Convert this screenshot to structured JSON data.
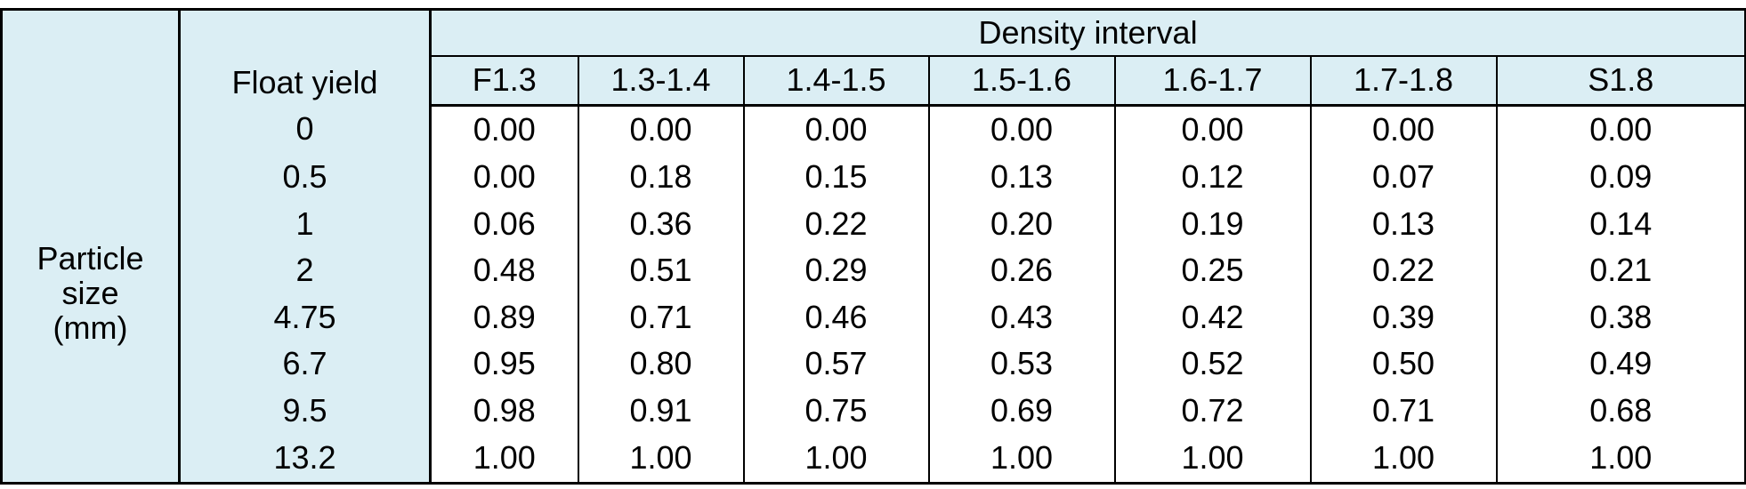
{
  "table": {
    "float_yield_header": "Float yield",
    "group_header": "Density interval",
    "columns": [
      "F1.3",
      "1.3-1.4",
      "1.4-1.5",
      "1.5-1.6",
      "1.6-1.7",
      "1.7-1.8",
      "S1.8"
    ],
    "row_header": "Particle size (mm)",
    "rows": [
      {
        "size": "0",
        "values": [
          "0.00",
          "0.00",
          "0.00",
          "0.00",
          "0.00",
          "0.00",
          "0.00"
        ]
      },
      {
        "size": "0.5",
        "values": [
          "0.00",
          "0.18",
          "0.15",
          "0.13",
          "0.12",
          "0.07",
          "0.09"
        ]
      },
      {
        "size": "1",
        "values": [
          "0.06",
          "0.36",
          "0.22",
          "0.20",
          "0.19",
          "0.13",
          "0.14"
        ]
      },
      {
        "size": "2",
        "values": [
          "0.48",
          "0.51",
          "0.29",
          "0.26",
          "0.25",
          "0.22",
          "0.21"
        ]
      },
      {
        "size": "4.75",
        "values": [
          "0.89",
          "0.71",
          "0.46",
          "0.43",
          "0.42",
          "0.39",
          "0.38"
        ]
      },
      {
        "size": "6.7",
        "values": [
          "0.95",
          "0.80",
          "0.57",
          "0.53",
          "0.52",
          "0.50",
          "0.49"
        ]
      },
      {
        "size": "9.5",
        "values": [
          "0.98",
          "0.91",
          "0.75",
          "0.69",
          "0.72",
          "0.71",
          "0.68"
        ]
      },
      {
        "size": "13.2",
        "values": [
          "1.00",
          "1.00",
          "1.00",
          "1.00",
          "1.00",
          "1.00",
          "1.00"
        ]
      }
    ]
  }
}
